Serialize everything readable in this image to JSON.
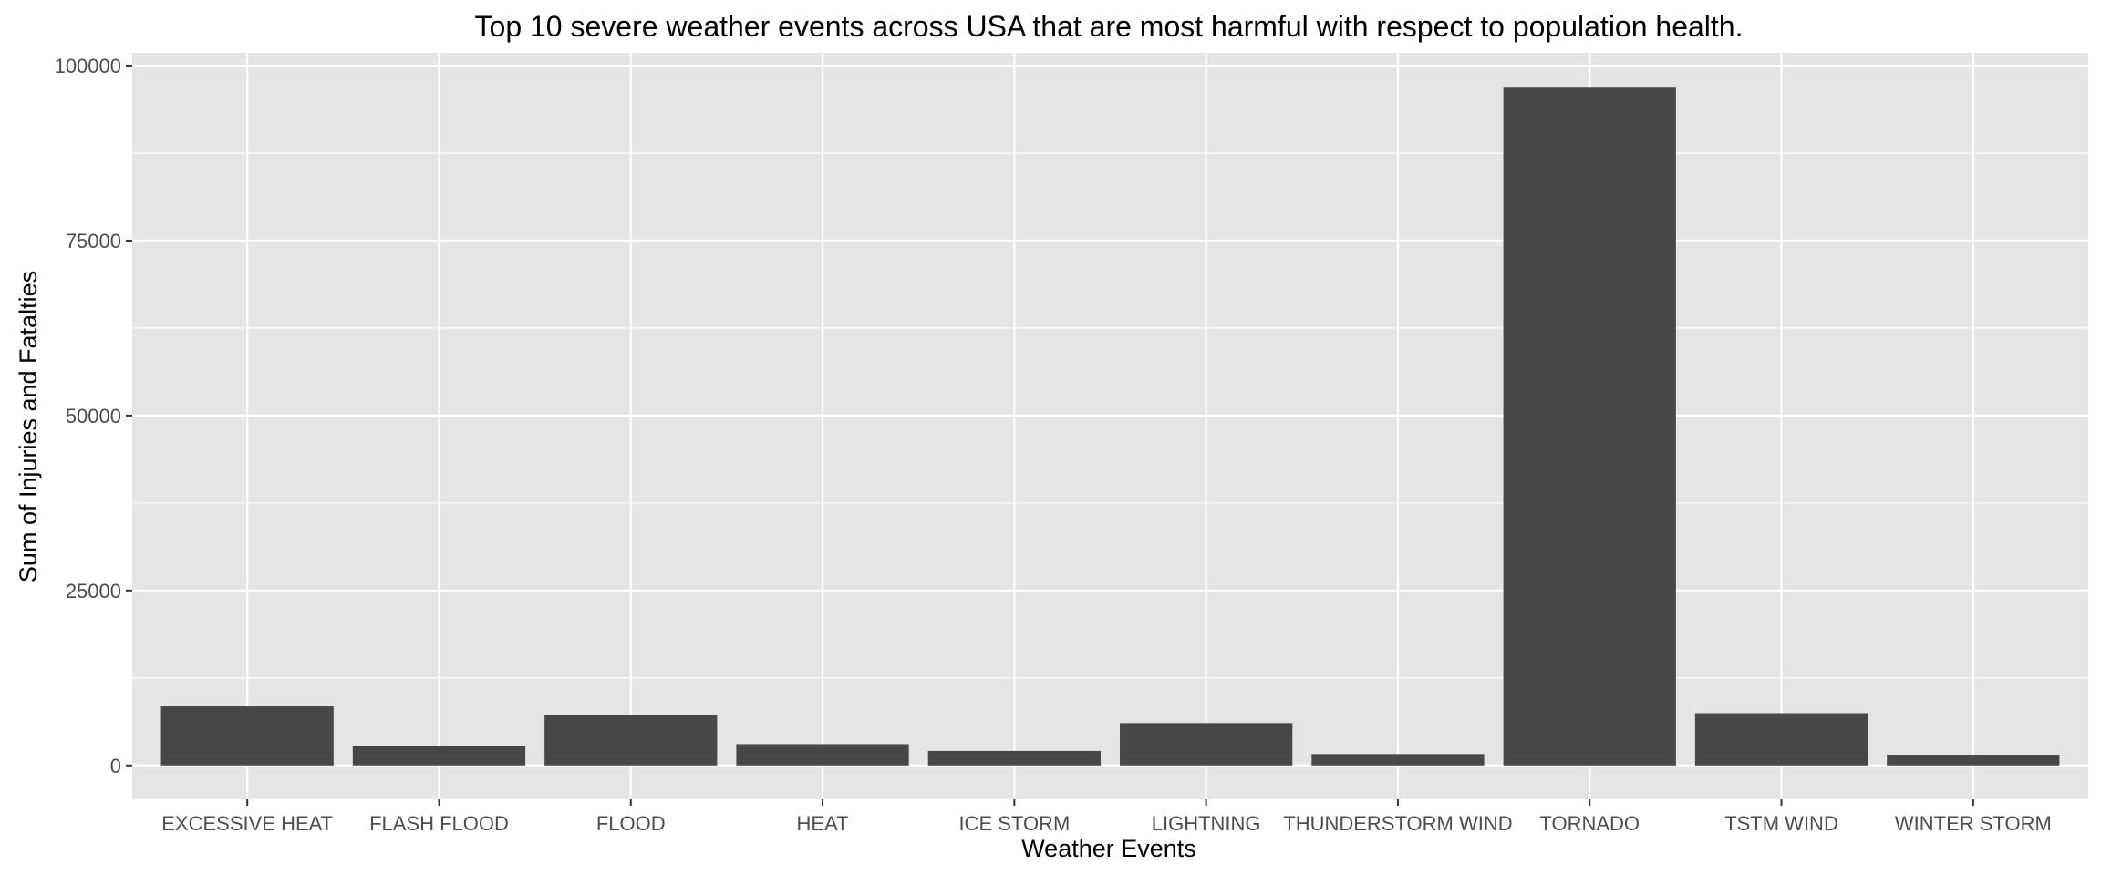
{
  "chart_data": {
    "type": "bar",
    "title": "Top 10 severe weather events across USA that are most harmful with respect to population health.",
    "xlabel": "Weather Events",
    "ylabel": "Sum of Injuries and Fatalties",
    "categories": [
      "EXCESSIVE HEAT",
      "FLASH FLOOD",
      "FLOOD",
      "HEAT",
      "ICE STORM",
      "LIGHTNING",
      "THUNDERSTORM WIND",
      "TORNADO",
      "TSTM WIND",
      "WINTER STORM"
    ],
    "values": [
      8428,
      2755,
      7259,
      3037,
      2064,
      6046,
      1621,
      96979,
      7461,
      1527
    ],
    "ylim": [
      -4850,
      101830
    ],
    "yticks": [
      0,
      25000,
      50000,
      75000,
      100000
    ],
    "ytick_labels": [
      "0",
      "25000",
      "50000",
      "75000",
      "100000"
    ],
    "grid": true,
    "legend": "none",
    "colors": {
      "bar": "#474747",
      "panel": "#e5e5e5",
      "grid": "#ffffff"
    }
  }
}
